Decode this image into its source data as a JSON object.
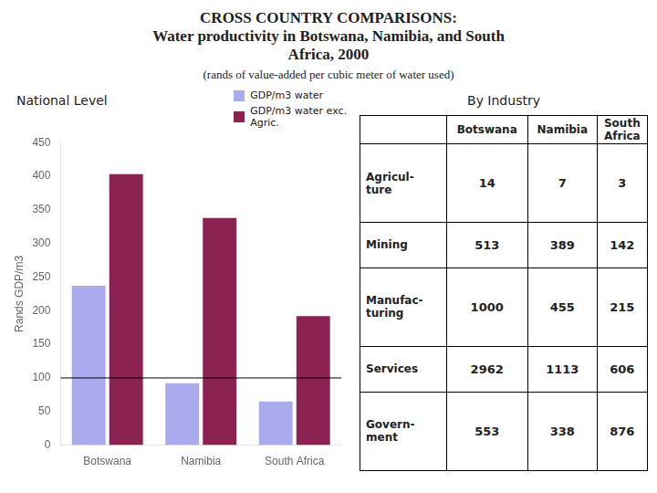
{
  "title": "CROSS COUNTRY COMPARISONS:\nWater productivity in Botswana, Namibia, and South\nAfrica, 2000",
  "subtitle": "(rands of value-added per cubic meter of water used)",
  "chart_data": [
    {
      "type": "bar",
      "title": "National Level",
      "categories": [
        "Botswana",
        "Namibia",
        "South Africa"
      ],
      "series": [
        {
          "name": "GDP/m3 water",
          "color": "#AAAAEE",
          "values": [
            237,
            92,
            65
          ]
        },
        {
          "name": "GDP/m3 water exc.\nAgric.",
          "color": "#8B2252",
          "values": [
            403,
            338,
            192
          ]
        }
      ],
      "ylabel": "Rands GDP/m3",
      "ylim": [
        0,
        450
      ],
      "yticks": [
        0,
        50,
        100,
        150,
        200,
        250,
        300,
        350,
        400,
        450
      ],
      "hline": 100,
      "grid": false,
      "legend": "upper right"
    },
    {
      "type": "table",
      "title": "By Industry",
      "columns": [
        "Botswana",
        "Namibia",
        "South\nAfrica"
      ],
      "rows": [
        "Agricul-\nture",
        "Mining",
        "Manufac-\nturing",
        "Services",
        "Govern-\nment"
      ],
      "cells": [
        [
          14,
          7,
          3
        ],
        [
          513,
          389,
          142
        ],
        [
          1000,
          455,
          215
        ],
        [
          2962,
          1113,
          606
        ],
        [
          553,
          338,
          876
        ]
      ]
    }
  ]
}
